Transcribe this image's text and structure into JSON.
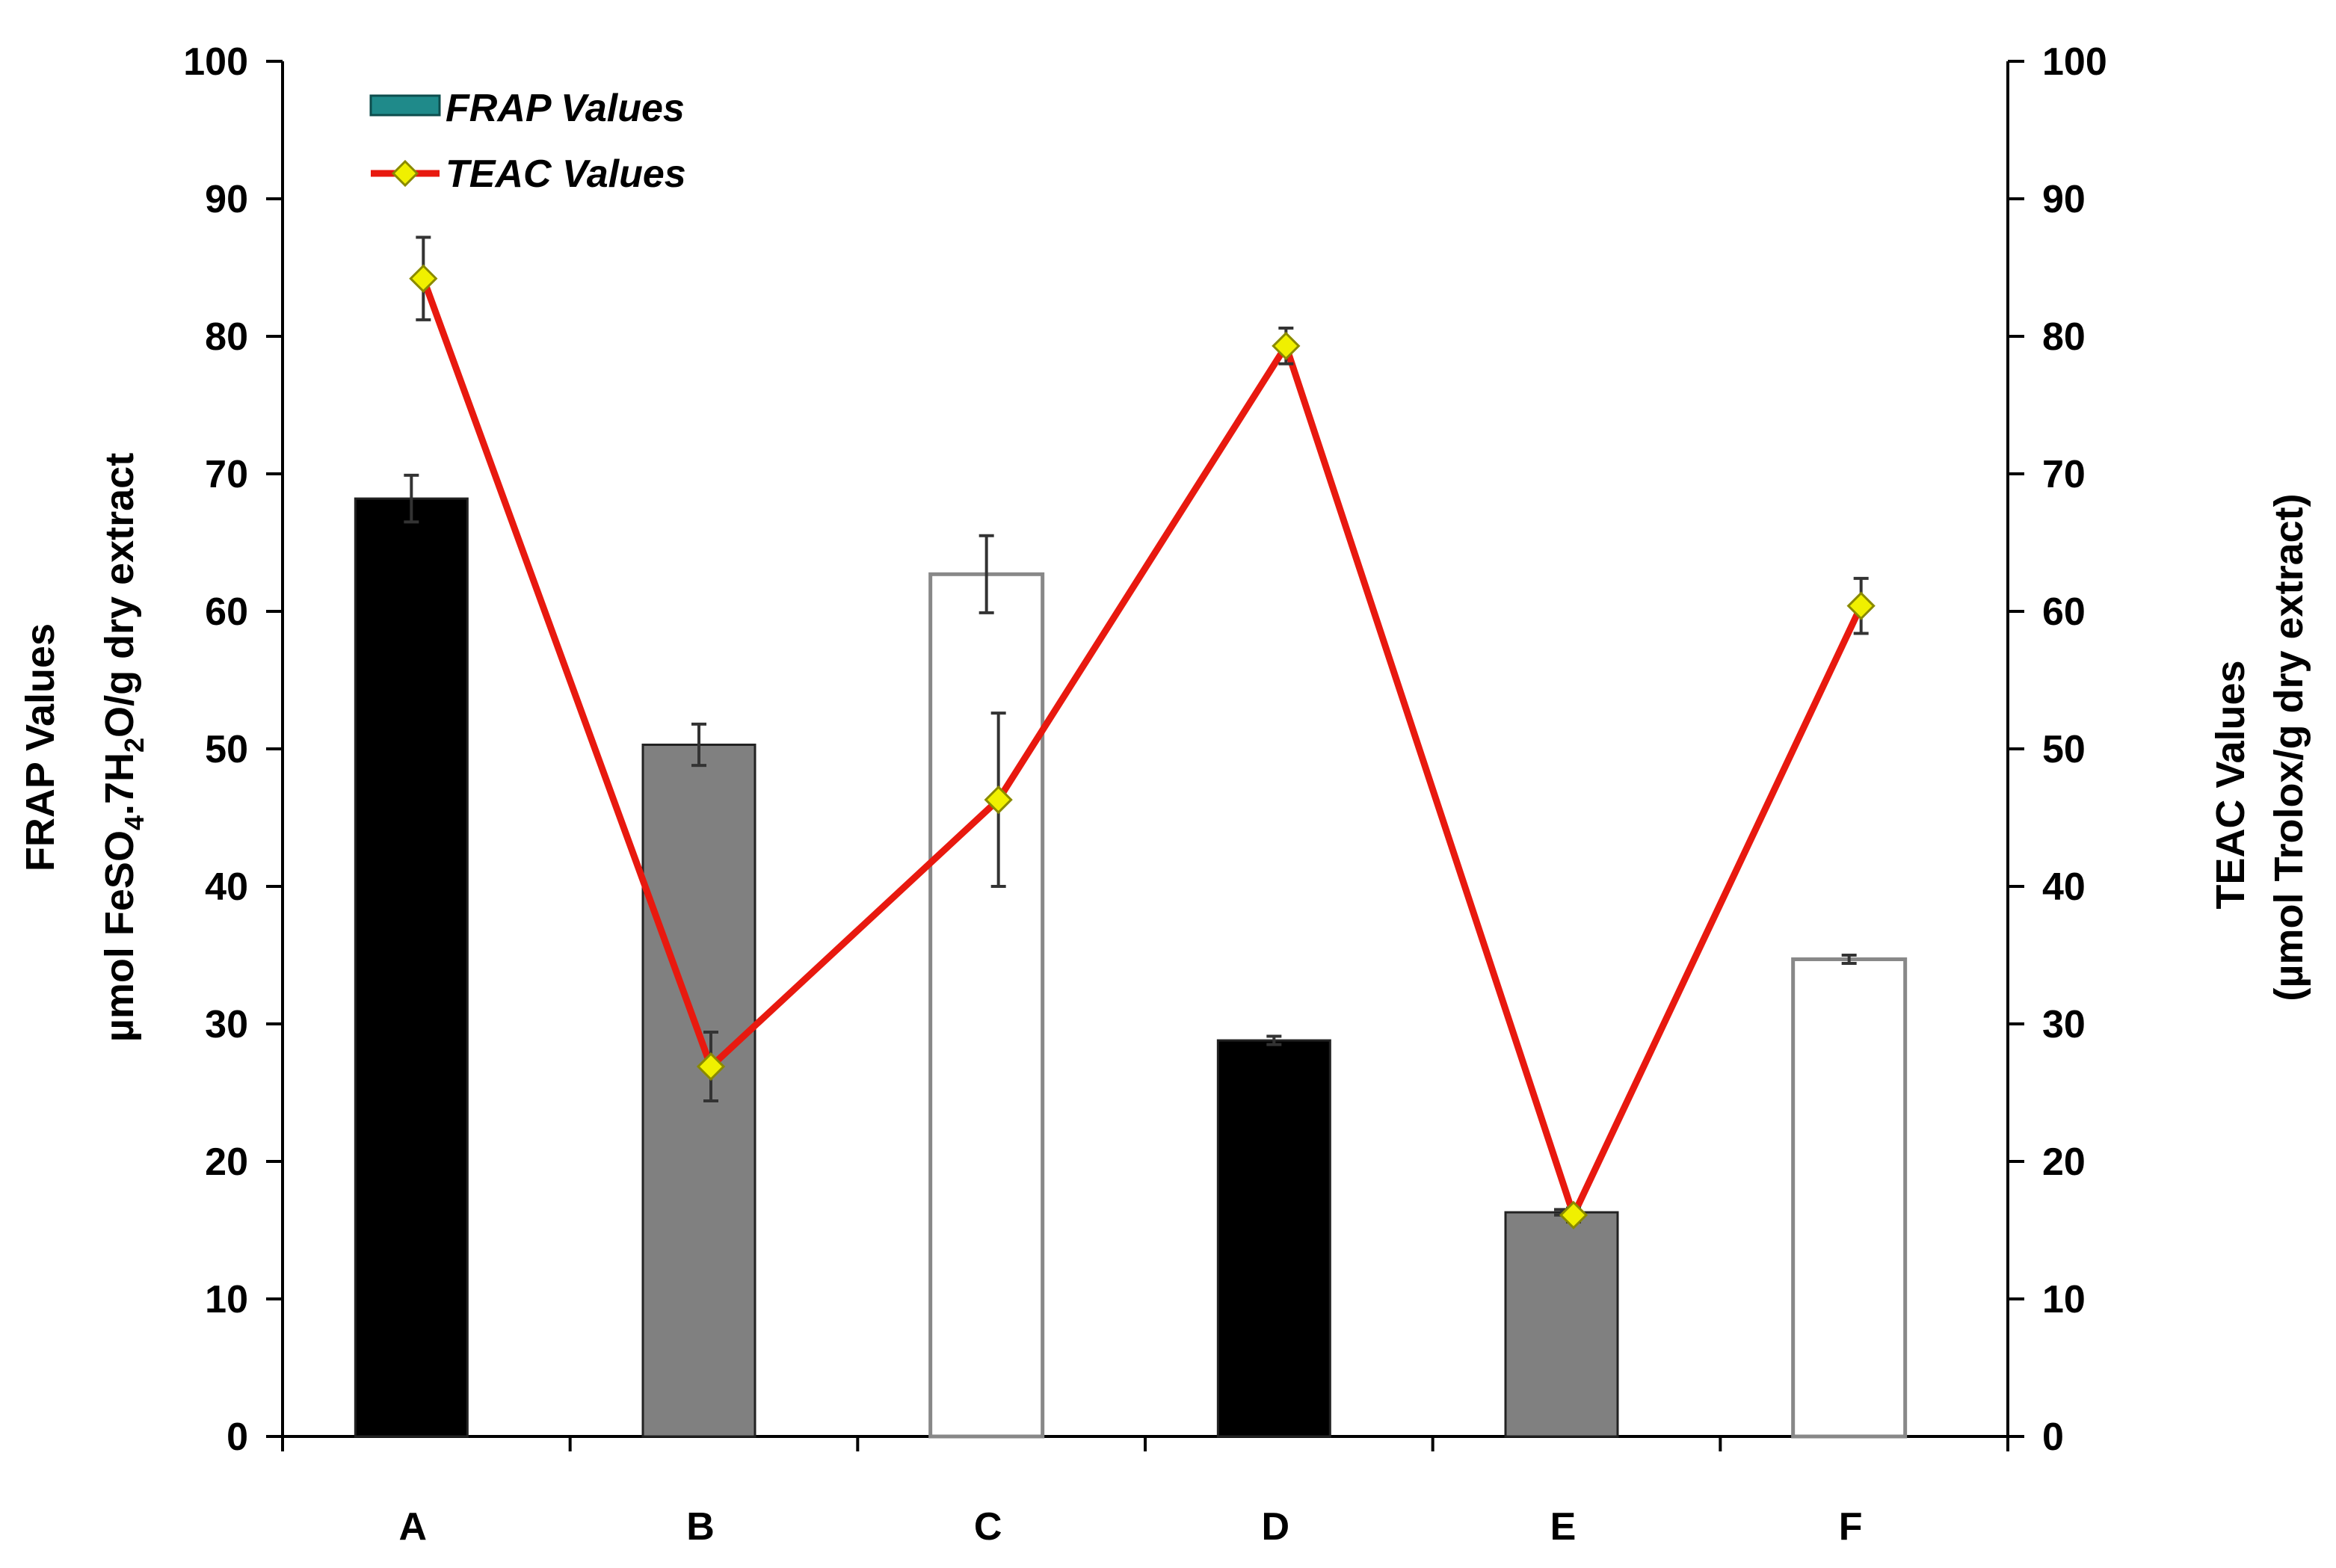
{
  "chart_data": {
    "type": "bar",
    "categories": [
      "A",
      "B",
      "C",
      "D",
      "E",
      "F"
    ],
    "series": [
      {
        "name": "FRAP Values",
        "type": "bar",
        "axis": "left",
        "values": [
          68.2,
          50.3,
          62.7,
          28.8,
          16.3,
          34.7
        ],
        "error": [
          1.7,
          1.5,
          2.8,
          0.3,
          0.2,
          0.3
        ],
        "bar_colors": [
          "#000000",
          "#808080",
          "#ffffff",
          "#000000",
          "#808080",
          "#ffffff"
        ],
        "legend_color": "#1f8a8a"
      },
      {
        "name": "TEAC Values",
        "type": "line",
        "axis": "right",
        "values": [
          84.2,
          26.9,
          46.3,
          79.3,
          16.1,
          60.4
        ],
        "error": [
          3.0,
          2.5,
          6.3,
          1.3,
          0.5,
          2.0
        ],
        "line_color": "#e8190f",
        "marker_color": "#f0f000"
      }
    ],
    "y_left": {
      "label_line1": "FRAP Values",
      "label_line2_parts": [
        "µmol FeSO",
        "4",
        ".7H",
        "2",
        "O/g dry extract"
      ],
      "ylim": [
        0,
        100
      ],
      "ticks": [
        0,
        10,
        20,
        30,
        40,
        50,
        60,
        70,
        80,
        90,
        100
      ]
    },
    "y_right": {
      "label_line1": "TEAC Values",
      "label_line2": "(µmol Trolox/g dry extract)",
      "ylim": [
        0,
        100
      ],
      "ticks": [
        0,
        10,
        20,
        30,
        40,
        50,
        60,
        70,
        80,
        90,
        100
      ]
    },
    "legend": {
      "position": "top-left",
      "entries": [
        "FRAP Values",
        "TEAC Values"
      ]
    },
    "grid": false
  }
}
